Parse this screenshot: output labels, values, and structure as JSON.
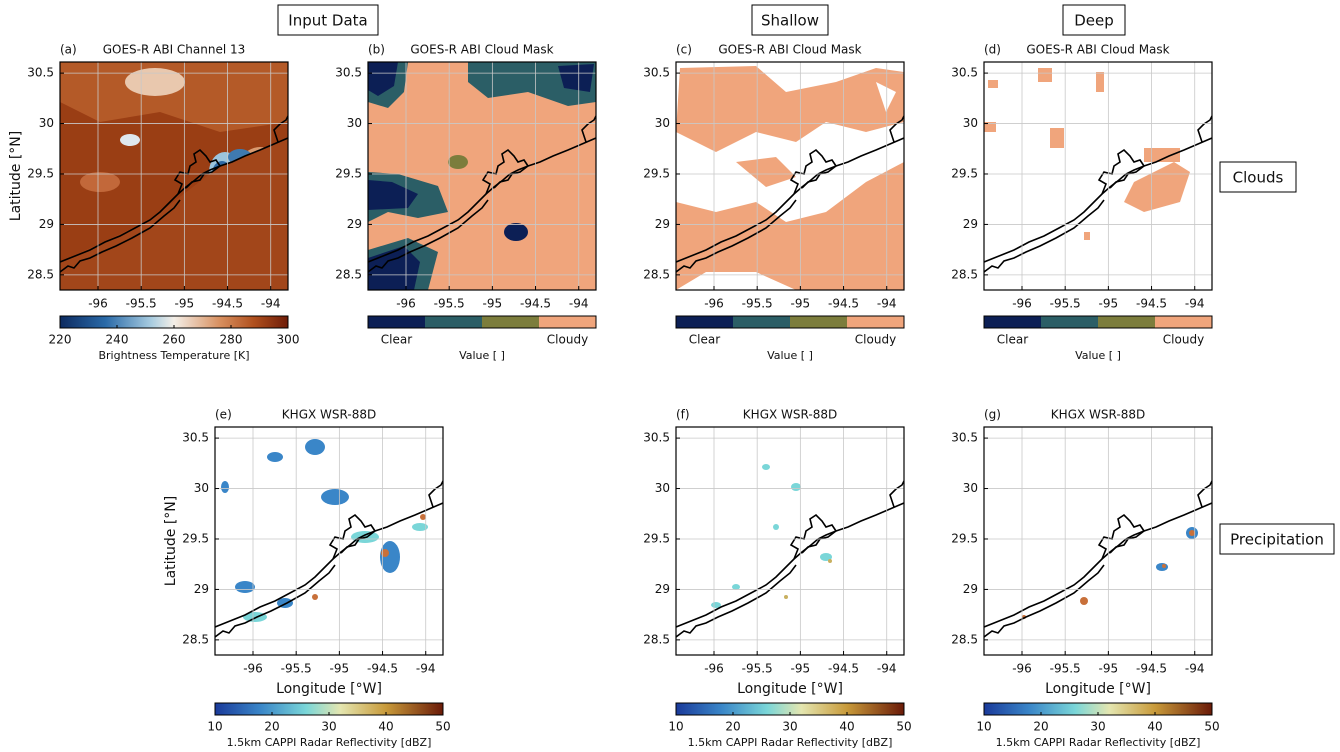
{
  "headers": {
    "input_data": "Input Data",
    "shallow": "Shallow",
    "deep": "Deep",
    "clouds": "Clouds",
    "precipitation": "Precipitation"
  },
  "axes": {
    "xlabel": "Longitude [°W]",
    "ylabel": "Latitude [°N]",
    "xlim": [
      -96.44,
      -93.8
    ],
    "ylim": [
      28.35,
      30.61
    ],
    "xticks": [
      -96,
      -95.5,
      -95,
      -94.5,
      -94
    ],
    "yticks": [
      28.5,
      29,
      29.5,
      30,
      30.5
    ],
    "grid": true
  },
  "panels": [
    {
      "letter": "(a)",
      "title": "GOES-R ABI Channel 13"
    },
    {
      "letter": "(b)",
      "title": "GOES-R ABI Cloud Mask"
    },
    {
      "letter": "(c)",
      "title": "GOES-R ABI Cloud Mask"
    },
    {
      "letter": "(d)",
      "title": "GOES-R ABI Cloud Mask"
    },
    {
      "letter": "(e)",
      "title": "KHGX WSR-88D"
    },
    {
      "letter": "(f)",
      "title": "KHGX WSR-88D"
    },
    {
      "letter": "(g)",
      "title": "KHGX WSR-88D"
    }
  ],
  "colorbars": {
    "brightness": {
      "label": "Brightness Temperature [K]",
      "lim": [
        220,
        300
      ],
      "ticks": [
        220,
        240,
        260,
        280,
        300
      ]
    },
    "cloud_mask": {
      "label": "Value [ ]",
      "low_label": "Clear",
      "high_label": "Cloudy",
      "colors": [
        "#0c1f55",
        "#2b5e66",
        "#7c7d3c",
        "#f0a57c"
      ]
    },
    "reflectivity": {
      "label": "1.5km CAPPI Radar Reflectivity [dBZ]",
      "lim": [
        10,
        50
      ],
      "ticks": [
        10,
        20,
        30,
        40,
        50
      ]
    }
  }
}
